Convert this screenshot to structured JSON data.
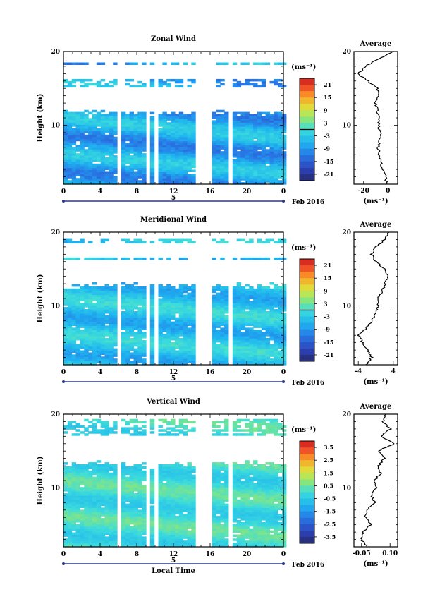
{
  "chart_data": [
    {
      "type": "heatmap",
      "title": "Zonal Wind",
      "ylabel": "Height (km)",
      "ylim": [
        2,
        20
      ],
      "y_ticks": [
        "20",
        "10"
      ],
      "x_ticks": [
        "0",
        "4",
        "8",
        "12",
        "16",
        "20",
        "0"
      ],
      "date_marker": "5",
      "date_label": "Feb 2016",
      "colorbar": {
        "unit": "(ms⁻¹)",
        "ticks": [
          "21",
          "15",
          "9",
          "3",
          "-3",
          "-9",
          "-15",
          "-21"
        ],
        "range": [
          -24,
          24
        ],
        "zero_line": 0
      },
      "field": {
        "base": -7,
        "amp": 5,
        "top_km": 12,
        "upper_bands": [
          [
            15,
            16
          ],
          [
            18,
            18.5
          ]
        ]
      },
      "profile": {
        "title": "Average",
        "x_ticks": [
          "-20",
          "0"
        ],
        "xlim": [
          -28,
          8
        ],
        "xlabel": "(ms⁻¹)",
        "y_ticks": [
          "20",
          "10"
        ],
        "y": [
          2,
          3,
          4,
          5,
          6,
          7,
          8,
          9,
          10,
          11,
          12,
          13,
          14,
          15,
          16,
          17,
          18,
          19,
          20
        ],
        "x": [
          -1,
          -2,
          -4,
          -6,
          -7,
          -8,
          -7,
          -6,
          -8,
          -7,
          -9,
          -10,
          -8,
          -9,
          -16,
          -25,
          -18,
          -8,
          4
        ]
      }
    },
    {
      "type": "heatmap",
      "title": "Meridional Wind",
      "ylabel": "Height (km)",
      "ylim": [
        2,
        20
      ],
      "y_ticks": [
        "20",
        "10"
      ],
      "x_ticks": [
        "0",
        "4",
        "8",
        "12",
        "16",
        "20",
        "0"
      ],
      "date_marker": "5",
      "date_label": "Feb 2016",
      "colorbar": {
        "unit": "(ms⁻¹)",
        "ticks": [
          "21",
          "15",
          "9",
          "3",
          "-3",
          "-9",
          "-15",
          "-21"
        ],
        "range": [
          -24,
          24
        ],
        "zero_line": 0
      },
      "field": {
        "base": -4,
        "amp": 4,
        "top_km": 13,
        "upper_bands": [
          [
            16,
            16.5
          ],
          [
            18.3,
            18.8
          ]
        ]
      },
      "profile": {
        "title": "Average",
        "x_ticks": [
          "-4",
          "4"
        ],
        "xlim": [
          -5,
          5
        ],
        "xlabel": "(ms⁻¹)",
        "y_ticks": [
          "20",
          "10"
        ],
        "y": [
          2,
          3,
          4,
          5,
          6,
          7,
          8,
          9,
          10,
          11,
          12,
          13,
          14,
          15,
          16,
          17,
          18,
          19,
          20
        ],
        "x": [
          -2,
          -1,
          -2,
          -3,
          -4,
          -2,
          -1,
          0,
          0.5,
          0.5,
          1.5,
          2,
          3,
          2,
          0,
          -1,
          0,
          2,
          3
        ]
      }
    },
    {
      "type": "heatmap",
      "title": "Vertical Wind",
      "ylabel": "Height (km)",
      "ylim": [
        2,
        20
      ],
      "y_ticks": [
        "20",
        "10"
      ],
      "x_ticks": [
        "0",
        "4",
        "8",
        "12",
        "16",
        "20",
        "0"
      ],
      "x_label": "Local Time",
      "date_marker": "5",
      "date_label": "Feb 2016",
      "colorbar": {
        "unit": "(ms⁻¹)",
        "ticks": [
          "3.5",
          "2.5",
          "1.5",
          "0.5",
          "-0.5",
          "-1.5",
          "-2.5",
          "-3.5"
        ],
        "range": [
          -4,
          4
        ],
        "zero_line": null
      },
      "field": {
        "base": 0,
        "amp": 0.5,
        "top_km": 13.5,
        "upper_bands": [
          [
            17,
            19.2
          ]
        ]
      },
      "profile": {
        "title": "Average",
        "x_ticks": [
          "-0.05",
          "0.10"
        ],
        "xlim": [
          -0.09,
          0.14
        ],
        "xlabel": "(ms⁻¹)",
        "y_ticks": [
          "20",
          "10"
        ],
        "y": [
          2,
          3,
          4,
          5,
          6,
          7,
          8,
          9,
          10,
          11,
          12,
          13,
          14,
          15,
          16,
          17,
          18,
          19,
          20
        ],
        "x": [
          -0.02,
          -0.05,
          -0.04,
          0.0,
          -0.03,
          -0.02,
          0.02,
          0.0,
          0.03,
          0.02,
          0.05,
          0.04,
          0.07,
          0.04,
          0.12,
          0.05,
          0.1,
          0.06,
          0.08
        ]
      }
    }
  ]
}
